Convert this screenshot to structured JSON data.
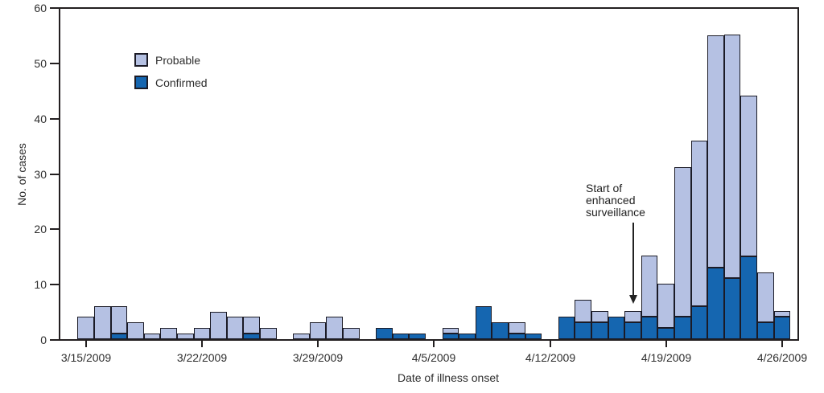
{
  "chart_data": {
    "type": "bar",
    "stacked": true,
    "title": "",
    "xlabel": "Date of illness onset",
    "ylabel": "No. of cases",
    "ylim": [
      0,
      60
    ],
    "yticks": [
      0,
      10,
      20,
      30,
      40,
      50,
      60
    ],
    "grid": false,
    "legend_position": "upper-left-inside",
    "categories": [
      "3/15/2009",
      "3/16/2009",
      "3/17/2009",
      "3/18/2009",
      "3/19/2009",
      "3/20/2009",
      "3/21/2009",
      "3/22/2009",
      "3/23/2009",
      "3/24/2009",
      "3/25/2009",
      "3/26/2009",
      "3/27/2009",
      "3/28/2009",
      "3/29/2009",
      "3/30/2009",
      "3/31/2009",
      "4/1/2009",
      "4/2/2009",
      "4/3/2009",
      "4/4/2009",
      "4/5/2009",
      "4/6/2009",
      "4/7/2009",
      "4/8/2009",
      "4/9/2009",
      "4/10/2009",
      "4/11/2009",
      "4/12/2009",
      "4/13/2009",
      "4/14/2009",
      "4/15/2009",
      "4/16/2009",
      "4/17/2009",
      "4/18/2009",
      "4/19/2009",
      "4/20/2009",
      "4/21/2009",
      "4/22/2009",
      "4/23/2009",
      "4/24/2009",
      "4/25/2009",
      "4/26/2009"
    ],
    "x_tick_indices": [
      0,
      7,
      14,
      21,
      28,
      35,
      42
    ],
    "x_tick_labels": [
      "3/15/2009",
      "3/22/2009",
      "3/29/2009",
      "4/5/2009",
      "4/12/2009",
      "4/19/2009",
      "4/26/2009"
    ],
    "series": [
      {
        "name": "Probable",
        "color": "#b5c1e3",
        "values": [
          4,
          6,
          5,
          3,
          1,
          2,
          1,
          2,
          5,
          4,
          3,
          2,
          0,
          1,
          3,
          4,
          2,
          0,
          0,
          0,
          0,
          0,
          1,
          0,
          0,
          0,
          2,
          0,
          0,
          0,
          4,
          2,
          0,
          2,
          11,
          8,
          27,
          30,
          42,
          44,
          29,
          9,
          1
        ]
      },
      {
        "name": "Confirmed",
        "color": "#1566b0",
        "values": [
          0,
          0,
          1,
          0,
          0,
          0,
          0,
          0,
          0,
          0,
          1,
          0,
          0,
          0,
          0,
          0,
          0,
          0,
          2,
          1,
          1,
          0,
          1,
          1,
          6,
          3,
          1,
          1,
          0,
          4,
          3,
          3,
          4,
          3,
          4,
          2,
          4,
          6,
          13,
          11,
          15,
          3,
          4
        ]
      }
    ],
    "bar_outline_color": "#1b1b26",
    "axis_color": "#231f20",
    "text_color": "#2e2e2e",
    "annotation": {
      "lines": [
        "Start of",
        "enhanced",
        "surveillance"
      ],
      "target_date": "4/17/2009",
      "target_index": 33
    }
  }
}
